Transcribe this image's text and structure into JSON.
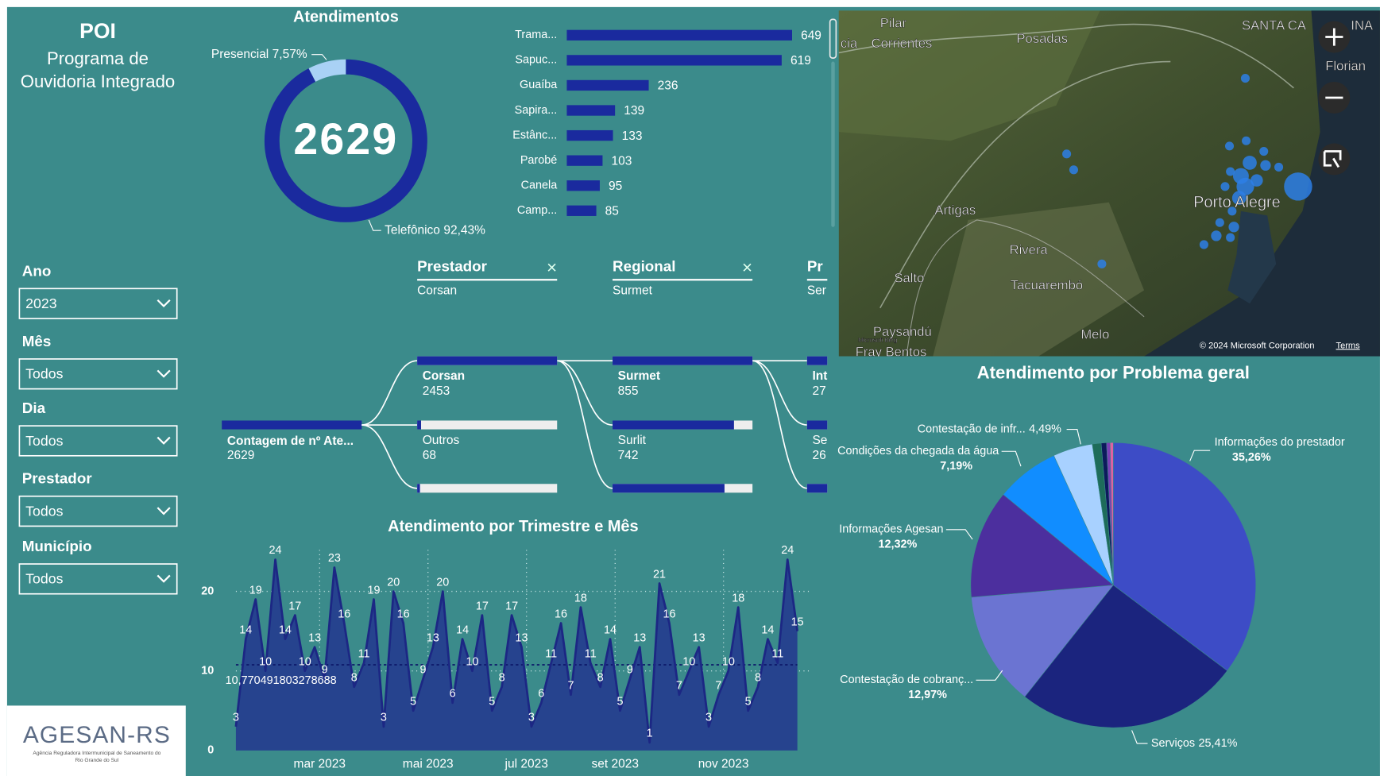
{
  "sidebar": {
    "title": "POI",
    "subtitle_lines": [
      "Programa de",
      "Ouvidoria Integrado"
    ],
    "filters": [
      {
        "label": "Ano",
        "value": "2023"
      },
      {
        "label": "Mês",
        "value": "Todos"
      },
      {
        "label": "Dia",
        "value": "Todos"
      },
      {
        "label": "Prestador",
        "value": "Todos"
      },
      {
        "label": "Município",
        "value": "Todos"
      }
    ],
    "logo": {
      "name": "AGESAN-RS",
      "tagline_lines": [
        "Agência Reguladora Intermunicipal de Saneamento do",
        "Rio Grande do Sul"
      ]
    }
  },
  "chart_data": [
    {
      "type": "donut",
      "title": "Atendimentos",
      "total": 2629,
      "categories": [
        "Presencial",
        "Telefônico"
      ],
      "values": [
        7.57,
        92.43
      ],
      "value_labels": [
        "7,57%",
        "92,43%"
      ],
      "colors": [
        "#a9d1f5",
        "#1a2a9e"
      ]
    },
    {
      "type": "hbar",
      "categories": [
        "Trama...",
        "Sapuc...",
        "Guaíba",
        "Sapira...",
        "Estânc...",
        "Parobé",
        "Canela",
        "Camp..."
      ],
      "values": [
        649,
        619,
        236,
        139,
        133,
        103,
        95,
        85
      ],
      "color": "#1a2a9e"
    },
    {
      "type": "area",
      "title": "Atendimento por Trimestre e Mês",
      "categories": [
        null,
        null,
        null,
        null,
        null,
        null,
        null,
        null,
        null,
        null,
        null,
        null,
        null,
        null,
        null,
        null,
        null,
        null,
        null,
        null,
        null,
        null,
        null,
        null,
        null,
        null,
        null,
        null,
        null,
        null,
        null,
        null,
        null,
        null,
        null,
        null,
        null,
        null,
        null,
        null,
        null,
        null,
        null,
        null,
        null,
        null,
        null,
        null,
        null,
        null,
        null,
        null,
        null,
        null,
        null,
        null,
        null,
        null
      ],
      "values": [
        3,
        14,
        19,
        10,
        24,
        14,
        17,
        10,
        13,
        9,
        23,
        16,
        8,
        11,
        19,
        3,
        20,
        16,
        5,
        9,
        13,
        20,
        6,
        14,
        10,
        17,
        5,
        8,
        17,
        13,
        3,
        6,
        11,
        16,
        7,
        18,
        11,
        8,
        14,
        5,
        9,
        13,
        1,
        21,
        16,
        7,
        10,
        13,
        3,
        7,
        10,
        18,
        5,
        8,
        14,
        11,
        24,
        15
      ],
      "xlim": [
        0,
        57
      ],
      "xticks": [
        {
          "value": 8.5,
          "label": "mar 2023"
        },
        {
          "value": 19.5,
          "label": "mai 2023"
        },
        {
          "value": 29.5,
          "label": "jul 2023"
        },
        {
          "value": 38.5,
          "label": "set 2023"
        },
        {
          "value": 49.5,
          "label": "nov 2023"
        }
      ],
      "ylim": [
        0,
        24
      ],
      "yticks": [
        0,
        10,
        20
      ],
      "reference_line": {
        "value": 10.770491803278688,
        "label": "10,770491803278688"
      },
      "color": "#1c2784",
      "fill": "#26438e",
      "grid": true
    },
    {
      "type": "pie",
      "title": "Atendimento por Problema geral",
      "categories": [
        "Informações do prestador",
        "Serviços",
        "Contestação de cobranç...",
        "Informações Agesan",
        "Condições da chegada da água",
        "Contestação de infr...",
        null,
        null,
        null,
        null
      ],
      "values": [
        35.26,
        25.41,
        12.97,
        12.32,
        7.19,
        4.49,
        1.0,
        0.6,
        0.4,
        0.36
      ],
      "value_labels": [
        "35,26%",
        "25,41%",
        "12,97%",
        "12,32%",
        "7,19%",
        "4,49%",
        null,
        null,
        null,
        null
      ],
      "colors": [
        "#3d4cc6",
        "#1b247e",
        "#6b74d2",
        "#4c2f9e",
        "#118dff",
        "#a8d1ff",
        "#1e6c5a",
        "#0d1a5c",
        "#7b3fb5",
        "#e061a2"
      ]
    }
  ],
  "decomposition": {
    "columns": [
      {
        "header": "Prestador",
        "selected": "Corsan"
      },
      {
        "header": "Regional",
        "selected": "Surmet"
      },
      {
        "header": "Pr",
        "selected": "Ser"
      }
    ],
    "root": {
      "label": "Contagem de nº Ate...",
      "value": 2629
    },
    "level1": [
      {
        "label": "Corsan",
        "value": 2453
      },
      {
        "label": "Outros",
        "value": 68
      }
    ],
    "level2": [
      {
        "label": "Surmet",
        "value": 855
      },
      {
        "label": "Surlit",
        "value": 742
      }
    ],
    "level3": [
      {
        "label": "Int",
        "value": 27
      },
      {
        "label": "Se",
        "value": 26
      }
    ]
  },
  "map": {
    "labels": [
      "Pilar",
      "cia",
      "Corrientes",
      "Posadas",
      "SANTA CA",
      "INA",
      "Florian",
      "Artigas",
      "Rivera",
      "Salto",
      "Tacuarembó",
      "Paysandú",
      "Melo",
      "Fray Bentos",
      "Porto Alegre",
      "Microsoft Bing"
    ],
    "copyright": "© 2024 Microsoft Corporation",
    "terms": "Terms"
  }
}
